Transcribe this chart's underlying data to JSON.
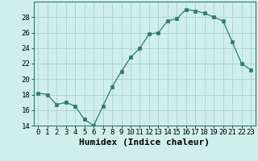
{
  "xlabel": "Humidex (Indice chaleur)",
  "x": [
    0,
    1,
    2,
    3,
    4,
    5,
    6,
    7,
    8,
    9,
    10,
    11,
    12,
    13,
    14,
    15,
    16,
    17,
    18,
    19,
    20,
    21,
    22,
    23
  ],
  "y": [
    18.2,
    18.0,
    16.7,
    17.0,
    16.5,
    14.8,
    14.0,
    16.5,
    19.0,
    21.0,
    22.8,
    24.0,
    25.8,
    26.0,
    27.5,
    27.8,
    29.0,
    28.8,
    28.5,
    28.0,
    27.5,
    24.8,
    22.0,
    21.2
  ],
  "line_color": "#2d7b6e",
  "marker": "s",
  "marker_size": 2.2,
  "bg_color": "#d0eeea",
  "grid_color": "#b0d4cf",
  "ylim": [
    14,
    30
  ],
  "yticks": [
    14,
    16,
    18,
    20,
    22,
    24,
    26,
    28
  ],
  "xticks": [
    0,
    1,
    2,
    3,
    4,
    5,
    6,
    7,
    8,
    9,
    10,
    11,
    12,
    13,
    14,
    15,
    16,
    17,
    18,
    19,
    20,
    21,
    22,
    23
  ],
  "tick_fontsize": 6.5,
  "xlabel_fontsize": 8.0,
  "spine_color": "#2d7b6e"
}
